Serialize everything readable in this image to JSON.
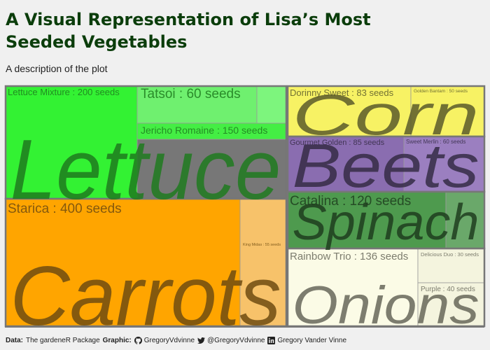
{
  "title": "A Visual Representation of Lisa’s Most Seeded Vegetables",
  "subtitle": "A description of the plot",
  "caption": {
    "data_label": "Data:",
    "data_value": "The gardeneR Package",
    "graphic_label": "Graphic:",
    "github": "GregoryVdvinne",
    "twitter": "@GregoryVdvinne",
    "linkedin": "Gregory Vander Vinne"
  },
  "icons": {
    "github": "github-icon",
    "twitter": "twitter-icon",
    "linkedin": "linkedin-icon"
  },
  "chart_data": {
    "type": "treemap",
    "unit": "seeds",
    "groups": [
      {
        "name": "Lettuce",
        "color": "#33f233",
        "text_color": "#1f7a1f",
        "children": [
          {
            "name": "Lettuce Mixture",
            "value": 200,
            "label": "Lettuce Mixture : 200 seeds",
            "fill": "#33f233"
          },
          {
            "name": "Tatsoi",
            "value": 60,
            "label": "Tatsoi : 60 seeds",
            "fill": "#6ff06f"
          },
          {
            "name": "Jericho Romaine",
            "value": 150,
            "label": "Jericho Romaine : 150 seeds",
            "fill": "#44ee44"
          },
          {
            "name": "",
            "value": 0,
            "label": "",
            "fill": "#7df57d"
          }
        ]
      },
      {
        "name": "Carrots",
        "color": "#ffa500",
        "text_color": "#6e4b10",
        "children": [
          {
            "name": "Starica",
            "value": 400,
            "label": "Starica : 400 seeds",
            "fill": "#ffa500"
          },
          {
            "name": "King Midas",
            "value": 55,
            "label": "King Midas : 55 seeds",
            "fill": "#f7c26a"
          }
        ]
      },
      {
        "name": "Corn",
        "color": "#f7f264",
        "text_color": "#5a5a2a",
        "children": [
          {
            "name": "Dorinny Sweet",
            "value": 83,
            "label": "Dorinny Sweet : 83 seeds",
            "fill": "#f7f264"
          },
          {
            "name": "Golden Bantam",
            "value": 50,
            "label": "Golden Bantam : 50 seeds",
            "fill": "#f7f264"
          }
        ]
      },
      {
        "name": "Beets",
        "color": "#8a6db0",
        "text_color": "#352b45",
        "children": [
          {
            "name": "Gourmet Golden",
            "value": 85,
            "label": "Gourmet Golden : 85 seeds",
            "fill": "#8a6db0"
          },
          {
            "name": "Sweet Merlin",
            "value": 60,
            "label": "Sweet Merlin : 60 seeds",
            "fill": "#9b7fc0"
          }
        ]
      },
      {
        "name": "Spinach",
        "color": "#4e9a4e",
        "text_color": "#1e3d1e",
        "children": [
          {
            "name": "Catalina",
            "value": 120,
            "label": "Catalina : 120 seeds",
            "fill": "#4e9a4e"
          },
          {
            "name": "",
            "value": 0,
            "label": "",
            "fill": "#6aa86a"
          }
        ]
      },
      {
        "name": "Onions",
        "color": "#fbfbe6",
        "text_color": "#666659",
        "children": [
          {
            "name": "Rainbow Trio",
            "value": 136,
            "label": "Rainbow Trio : 136 seeds",
            "fill": "#fbfbe6"
          },
          {
            "name": "Delicious Duo",
            "value": 30,
            "label": "Delicious Duo : 30 seeds",
            "fill": "#f4f4de"
          },
          {
            "name": "Purple",
            "value": 40,
            "label": "Purple : 40 seeds",
            "fill": "#f4f4de"
          }
        ]
      }
    ]
  }
}
